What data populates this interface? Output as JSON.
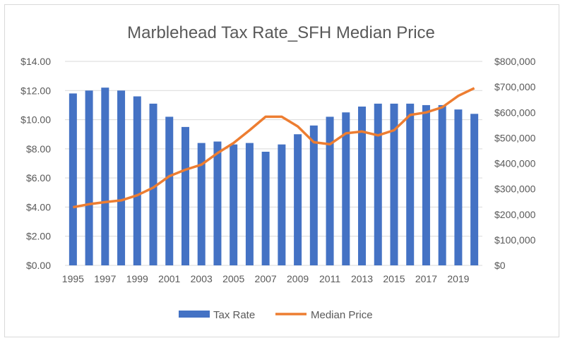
{
  "chart_data": {
    "type": "bar+line",
    "title": "Marblehead Tax Rate_SFH Median Price",
    "categories": [
      1995,
      1996,
      1997,
      1998,
      1999,
      2000,
      2001,
      2002,
      2003,
      2004,
      2005,
      2006,
      2007,
      2008,
      2009,
      2010,
      2011,
      2012,
      2013,
      2014,
      2015,
      2016,
      2017,
      2018,
      2019,
      2020
    ],
    "x_tick_labels": [
      "1995",
      "1997",
      "1999",
      "2001",
      "2003",
      "2005",
      "2007",
      "2009",
      "2011",
      "2013",
      "2015",
      "2017",
      "2019"
    ],
    "series": [
      {
        "name": "Tax Rate",
        "type": "bar",
        "axis": "left",
        "color": "#4472c4",
        "values": [
          11.8,
          12.0,
          12.2,
          12.0,
          11.6,
          11.1,
          10.2,
          9.5,
          8.4,
          8.5,
          8.3,
          8.4,
          7.8,
          8.3,
          9.0,
          9.6,
          10.2,
          10.5,
          10.9,
          11.1,
          11.1,
          11.1,
          11.0,
          11.0,
          10.7,
          10.4
        ]
      },
      {
        "name": "Median Price",
        "type": "line",
        "axis": "right",
        "color": "#ed7d31",
        "values": [
          228000,
          240000,
          248000,
          255000,
          275000,
          305000,
          350000,
          375000,
          395000,
          440000,
          480000,
          530000,
          583000,
          583000,
          545000,
          483000,
          475000,
          518000,
          525000,
          510000,
          530000,
          590000,
          600000,
          620000,
          665000,
          695000
        ]
      }
    ],
    "y_left": {
      "ylim": [
        0,
        14
      ],
      "tick_labels": [
        "$0.00",
        "$2.00",
        "$4.00",
        "$6.00",
        "$8.00",
        "$10.00",
        "$12.00",
        "$14.00"
      ]
    },
    "y_right": {
      "ylim": [
        0,
        800000
      ],
      "tick_labels": [
        "$0",
        "$100,000",
        "$200,000",
        "$300,000",
        "$400,000",
        "$500,000",
        "$600,000",
        "$700,000",
        "$800,000"
      ]
    },
    "grid": true,
    "legend": "bottom"
  }
}
